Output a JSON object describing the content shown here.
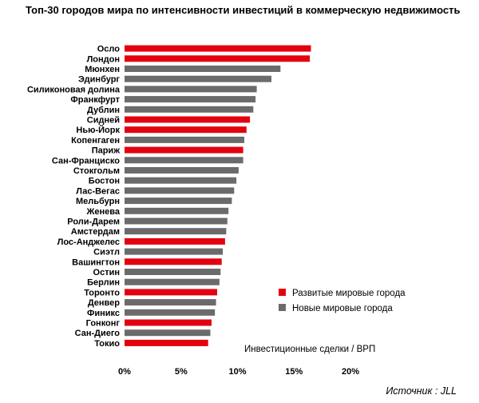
{
  "chart_data": {
    "type": "bar",
    "orientation": "horizontal",
    "title": "Топ-30 городов мира по интенсивности инвестиций в коммерческую недвижимость",
    "categories": [
      "Осло",
      "Лондон",
      "Мюнхен",
      "Эдинбург",
      "Силиконовая долина",
      "Франкфурт",
      "Дублин",
      "Сидней",
      "Нью-Йорк",
      "Копенгаген",
      "Париж",
      "Сан-Франциско",
      "Стокгольм",
      "Бостон",
      "Лас-Вегас",
      "Мельбурн",
      "Женева",
      "Роли-Дарем",
      "Амстердам",
      "Лос-Анджелес",
      "Сиэтл",
      "Вашингтон",
      "Остин",
      "Берлин",
      "Торонто",
      "Денвер",
      "Финикс",
      "Гонконг",
      "Сан-Диего",
      "Токио"
    ],
    "values": [
      16.5,
      16.4,
      13.8,
      13.0,
      11.7,
      11.6,
      11.4,
      11.1,
      10.8,
      10.6,
      10.5,
      10.5,
      10.1,
      9.9,
      9.7,
      9.5,
      9.2,
      9.1,
      9.0,
      8.9,
      8.7,
      8.6,
      8.5,
      8.4,
      8.2,
      8.1,
      8.0,
      7.7,
      7.6,
      7.4
    ],
    "groups": [
      "developed",
      "developed",
      "new",
      "new",
      "new",
      "new",
      "new",
      "developed",
      "developed",
      "new",
      "developed",
      "new",
      "new",
      "new",
      "new",
      "new",
      "new",
      "new",
      "new",
      "developed",
      "new",
      "developed",
      "new",
      "new",
      "developed",
      "new",
      "new",
      "developed",
      "new",
      "developed"
    ],
    "legend": [
      {
        "key": "developed",
        "label": "Развитые мировые города",
        "color": "#e3000f"
      },
      {
        "key": "new",
        "label": "Новые мировые города",
        "color": "#6b6b6b"
      }
    ],
    "xlim": [
      0,
      20
    ],
    "xticks": [
      0,
      5,
      10,
      15,
      20
    ],
    "xtick_labels": [
      "0%",
      "5%",
      "10%",
      "15%",
      "20%"
    ],
    "xlabel": "Инвестиционные сделки / ВРП",
    "legend_placement": "right",
    "grid": false
  },
  "source": "Источник : JLL"
}
